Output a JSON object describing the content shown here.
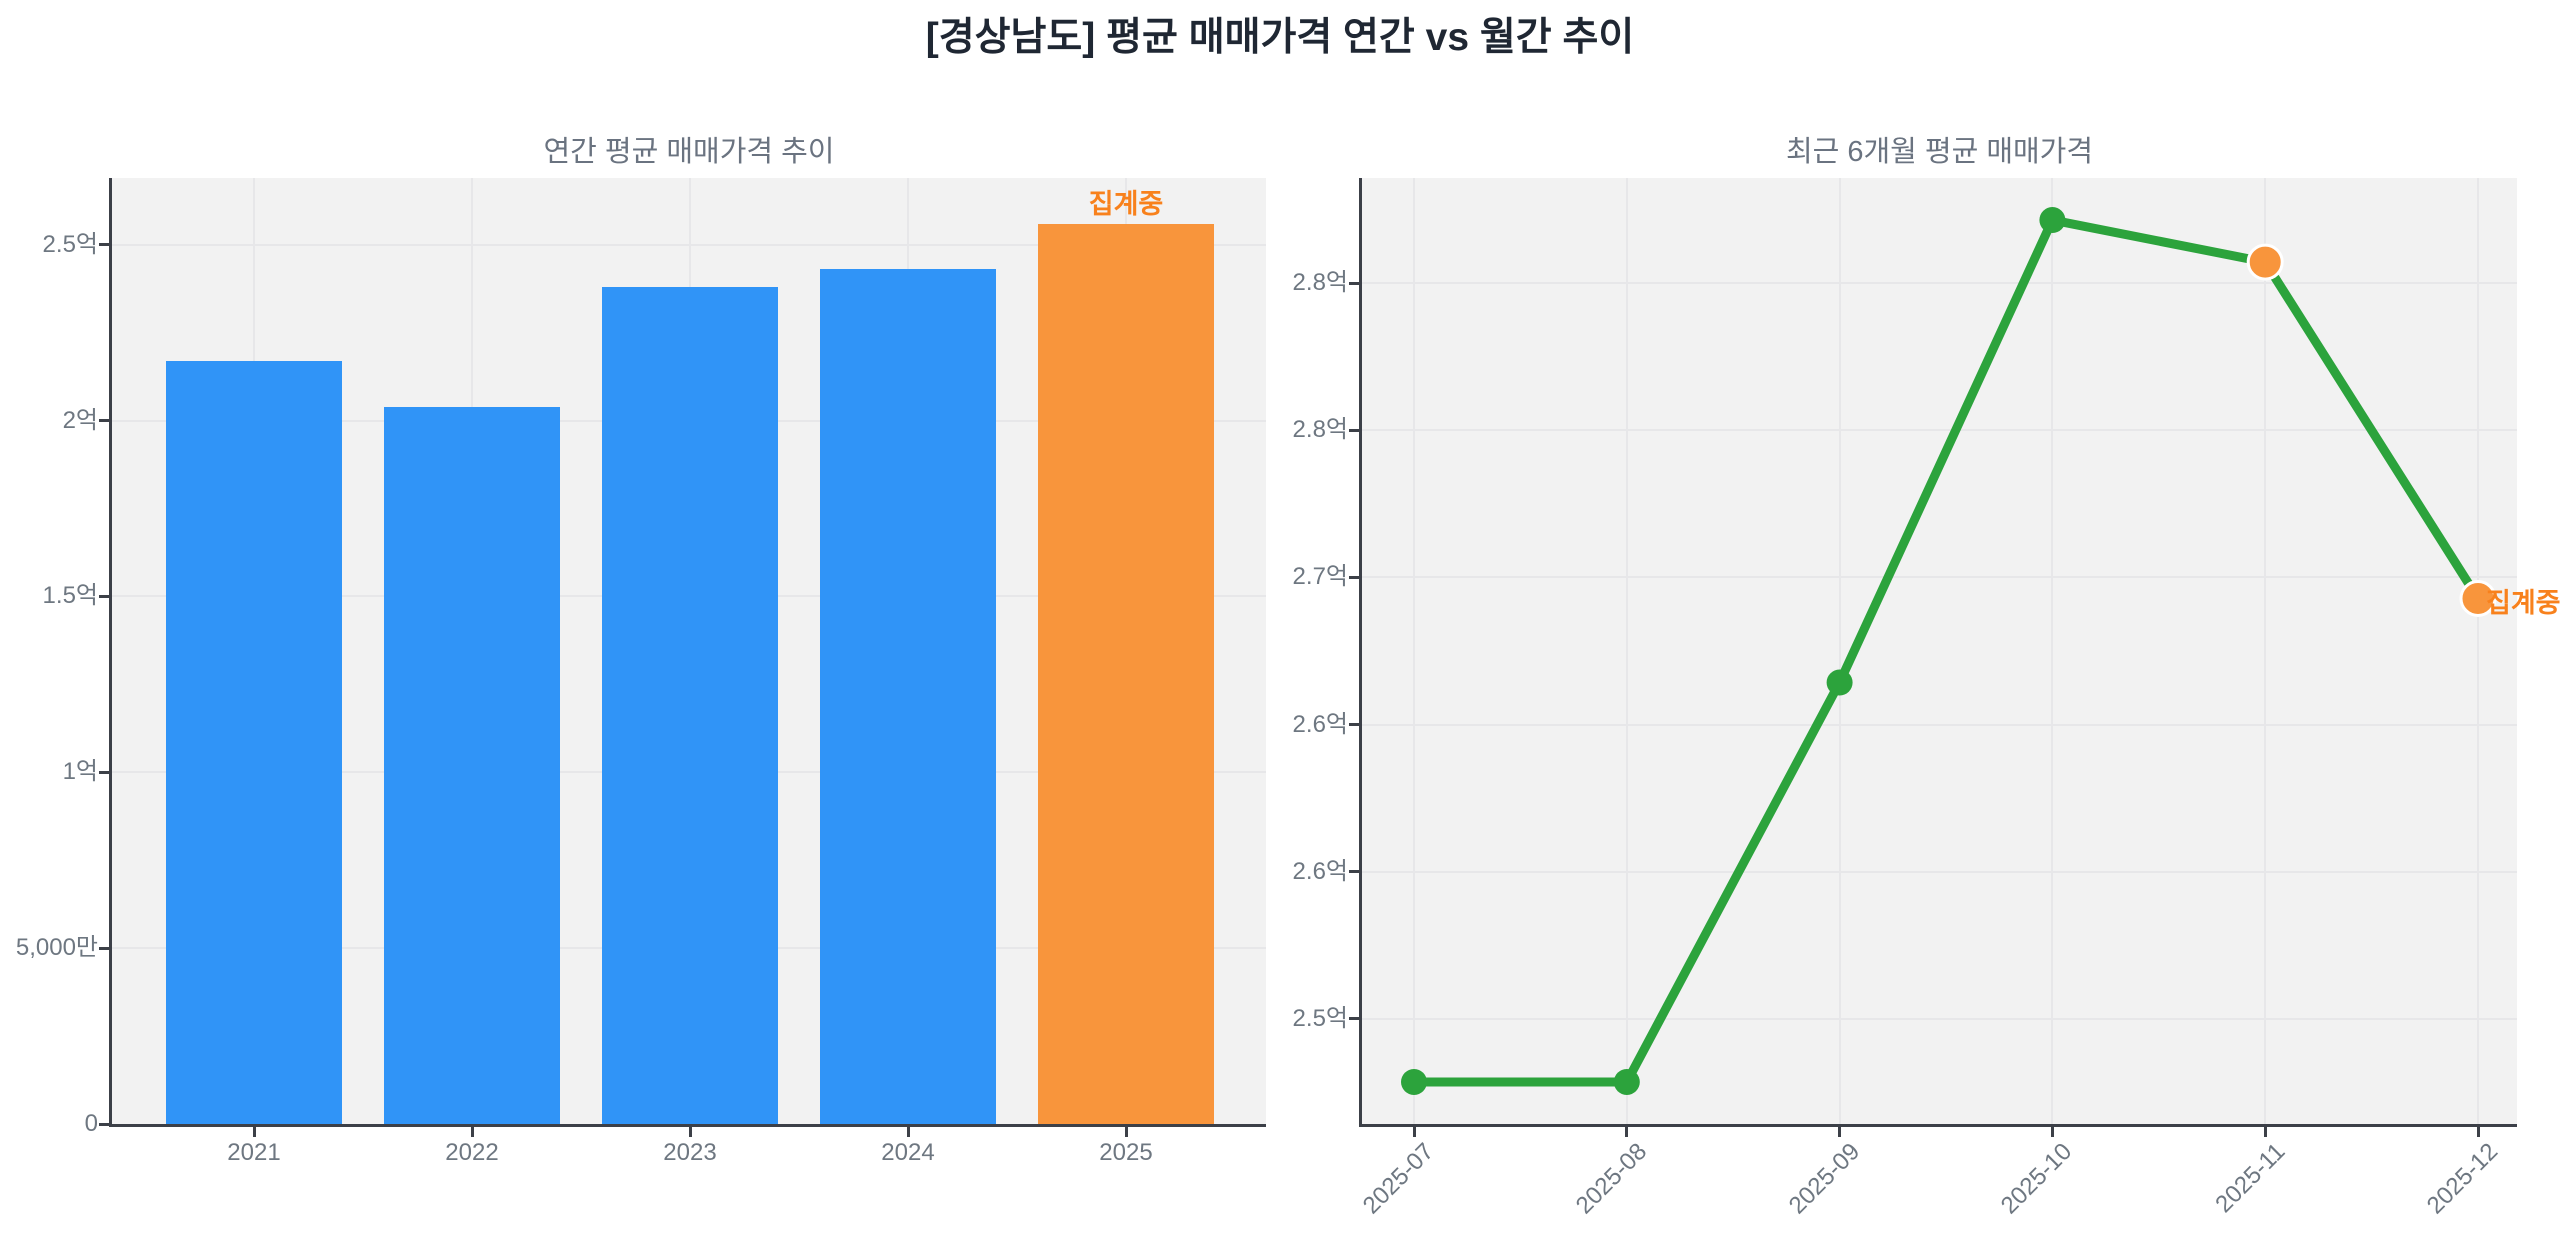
{
  "page_title": "[경상남도] 평균 매매가격 연간 vs 월간 추이",
  "colors": {
    "blue": "#3094f7",
    "orange": "#f8953c",
    "green": "#2ca33c",
    "badge_orange": "#f8811c",
    "plot_bg": "#f2f2f2",
    "grid": "#e7e7e9",
    "spine": "#3c4048",
    "tick_label": "#6e7781",
    "subtitle": "#6a7380",
    "title": "#1f2733",
    "point_stroke": "#ffffff"
  },
  "chart_data": [
    {
      "type": "bar",
      "title": "연간 평균 매매가격 추이",
      "categories": [
        "2021",
        "2022",
        "2023",
        "2024",
        "2025"
      ],
      "values": [
        2.17,
        2.04,
        2.38,
        2.43,
        2.56
      ],
      "unit": "억",
      "bar_color_keys": [
        "blue",
        "blue",
        "blue",
        "blue",
        "orange"
      ],
      "annotation": {
        "text": "집계중",
        "category": "2025"
      },
      "ylim": [
        0,
        2.69
      ],
      "yticks": [
        {
          "value": 0.0,
          "label": "0"
        },
        {
          "value": 0.5,
          "label": "5,000만"
        },
        {
          "value": 1.0,
          "label": "1억"
        },
        {
          "value": 1.5,
          "label": "1.5억"
        },
        {
          "value": 2.0,
          "label": "2억"
        },
        {
          "value": 2.5,
          "label": "2.5억"
        }
      ],
      "grid": true,
      "legend": null
    },
    {
      "type": "line",
      "title": "최근 6개월 평균 매매가격",
      "x": [
        "2025-07",
        "2025-08",
        "2025-09",
        "2025-10",
        "2025-11",
        "2025-12"
      ],
      "values": [
        2.46,
        2.46,
        2.65,
        2.87,
        2.85,
        2.69
      ],
      "unit": "억",
      "point_color_keys": [
        "green",
        "green",
        "green",
        "green",
        "orange",
        "orange"
      ],
      "annotation": {
        "text": "집계중",
        "x": "2025-12"
      },
      "ylim": [
        2.44,
        2.89
      ],
      "yticks": [
        {
          "value": 2.84,
          "label": "2.8억"
        },
        {
          "value": 2.77,
          "label": "2.8억"
        },
        {
          "value": 2.7,
          "label": "2.7억"
        },
        {
          "value": 2.63,
          "label": "2.6억"
        },
        {
          "value": 2.56,
          "label": "2.6억"
        },
        {
          "value": 2.49,
          "label": "2.5억"
        }
      ],
      "grid": true,
      "legend": null,
      "x_label_rotation": -45
    }
  ]
}
